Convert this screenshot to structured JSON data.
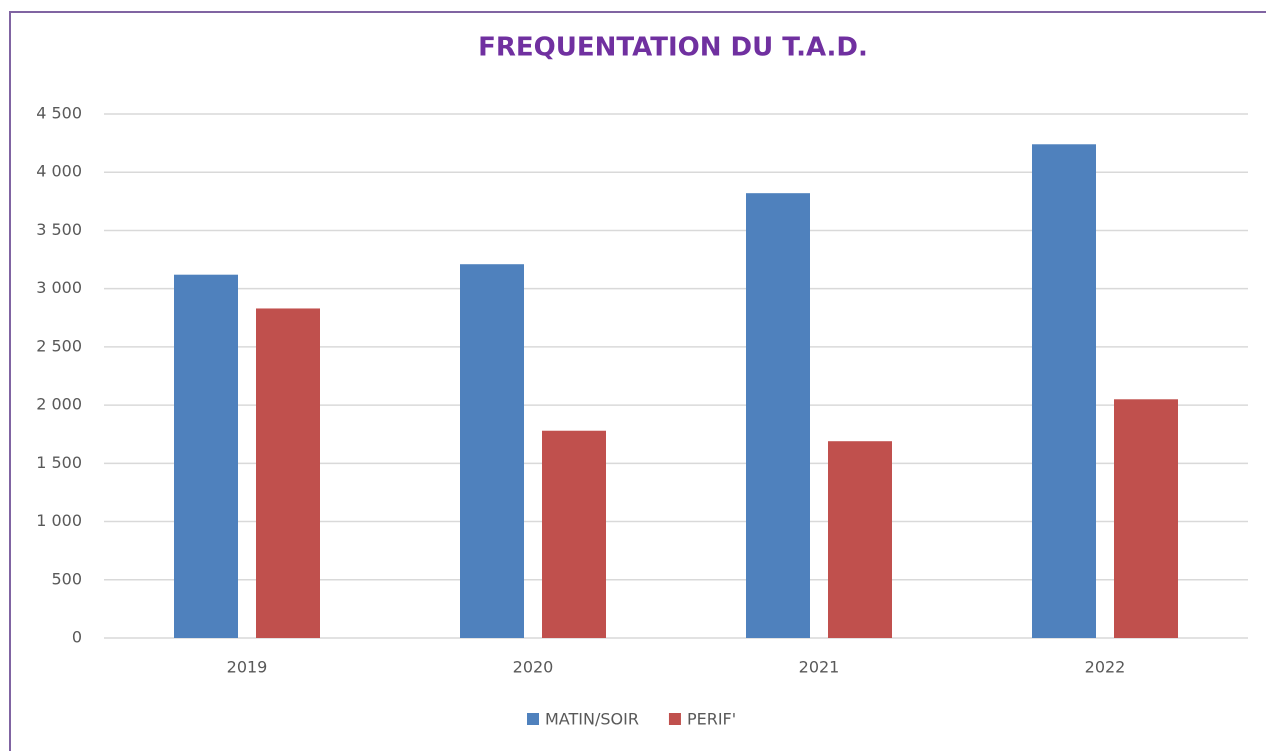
{
  "chart_data": {
    "type": "bar",
    "title": "FREQUENTATION DU T.A.D.",
    "categories": [
      "2019",
      "2020",
      "2021",
      "2022"
    ],
    "series": [
      {
        "name": "MATIN/SOIR",
        "color": "#4f81bd",
        "values": [
          3120,
          3210,
          3820,
          4240
        ]
      },
      {
        "name": "PERIF'",
        "color": "#c0504d",
        "values": [
          2830,
          1780,
          1690,
          2050
        ]
      }
    ],
    "ylim": [
      0,
      4500
    ],
    "yticks": [
      0,
      500,
      {
        "value": 1000,
        "label": "1 000"
      },
      {
        "value": 1500,
        "label": "1 500"
      },
      {
        "value": 2000,
        "label": "2 000"
      },
      {
        "value": 2500,
        "label": "2 500"
      },
      {
        "value": 3000,
        "label": "3 000"
      },
      {
        "value": 3500,
        "label": "3 500"
      },
      {
        "value": 4000,
        "label": "4 000"
      },
      {
        "value": 4500,
        "label": "4 500"
      }
    ],
    "grid": true,
    "legend": "bottom"
  }
}
